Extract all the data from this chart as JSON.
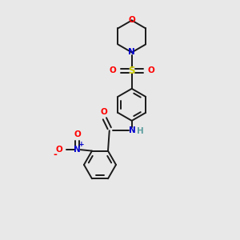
{
  "background_color": "#e8e8e8",
  "bond_color": "#1a1a1a",
  "atom_colors": {
    "O": "#ff0000",
    "N": "#0000cc",
    "S": "#cccc00",
    "H": "#5f9ea0",
    "C": "#1a1a1a"
  },
  "font_size": 7.5,
  "line_width": 1.4,
  "figsize": [
    3.0,
    3.0
  ],
  "dpi": 100
}
